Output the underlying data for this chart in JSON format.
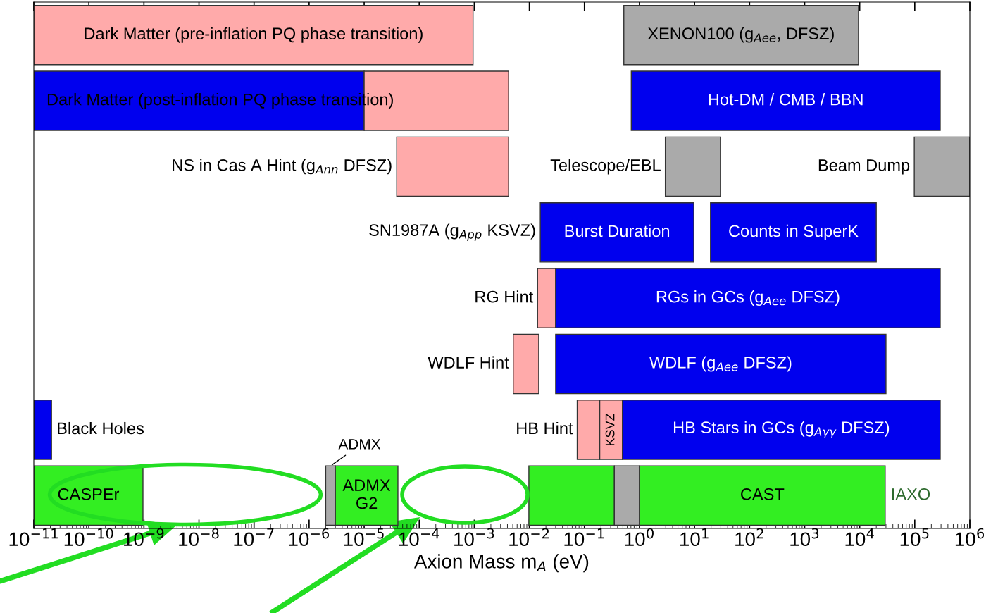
{
  "chart_data": {
    "type": "bar",
    "orientation": "horizontal",
    "log": "x",
    "tick_labels": "x",
    "xlabel": "Axion Mass m$_{A}$ (eV)",
    "categories": [
      null,
      null,
      null,
      null,
      null,
      null,
      null,
      null
    ],
    "xlim": [
      1e-11,
      1000000.0
    ],
    "xticks": [
      {
        "value": 1e-11,
        "label": "10$^{−11}$"
      },
      {
        "value": 1e-10,
        "label": "10$^{−10}$"
      },
      {
        "value": 1e-09,
        "label": "10$^{−9}$"
      },
      {
        "value": 1e-08,
        "label": "10$^{−8}$"
      },
      {
        "value": 1e-07,
        "label": "10$^{−7}$"
      },
      {
        "value": 1e-06,
        "label": "10$^{−6}$"
      },
      {
        "value": 1e-05,
        "label": "10$^{−5}$"
      },
      {
        "value": 0.0001,
        "label": "10$^{−4}$"
      },
      {
        "value": 0.001,
        "label": "10$^{−3}$"
      },
      {
        "value": 0.01,
        "label": "10$^{−2}$"
      },
      {
        "value": 0.1,
        "label": "10$^{−1}$"
      },
      {
        "value": 1,
        "label": "10$^{0}$"
      },
      {
        "value": 10,
        "label": "10$^{1}$"
      },
      {
        "value": 100,
        "label": "10$^{2}$"
      },
      {
        "value": 1000,
        "label": "10$^{3}$"
      },
      {
        "value": 10000.0,
        "label": "10$^{4}$"
      },
      {
        "value": 100000.0,
        "label": "10$^{5}$"
      },
      {
        "value": 1000000.0,
        "label": "10$^{6}$"
      }
    ],
    "series": [
      {
        "values": [
          0.00095,
          1e-05,
          0.004161,
          9.684,
          0.0159,
          0.0097,
          1.1e-11,
          9.5e-10
        ],
        "base": [
          1e-11,
          1e-11,
          3.9e-05,
          0.0158,
          0.0141,
          0.0051,
          1e-11,
          1e-11
        ],
        "colors": [
          "#ffaaaa",
          "#0000ee",
          "#ffaaaa",
          "#0000ee",
          "#ffaaaa",
          "#ffaaaa",
          "#0000ee",
          "#33ee22"
        ],
        "value_labels": [
          "Dark Matter (pre-inflation PQ phase transition)",
          "Dark Matter (post-inflation PQ phase transition)",
          "NS in Cas A Hint (g$_{Ann}$ DFSZ)",
          "Burst Duration",
          "RG Hint",
          "WDLF Hint",
          "Black Holes",
          "CASPEr"
        ]
      },
      {
        "values": [
          9500,
          0.00419,
          26.55,
          19980.5,
          290000.0,
          30000.0,
          0.116,
          1e-06
        ],
        "base": [
          0.52,
          1e-05,
          2.95,
          19.5,
          0.03,
          0.03,
          0.074,
          2e-06
        ],
        "colors": [
          "#aaaaaa",
          "#ffaaaa",
          "#aaaaaa",
          "#0000ee",
          "#0000ee",
          "#0000ee",
          "#ffaaaa",
          "#aaaaaa"
        ],
        "value_labels": [
          "XENON100 (g$_{Aee}$, DFSZ)",
          null,
          "Telescope/EBL",
          "Counts in SuperK",
          "RGs in GCs (g$_{Aee}$ DFSZ)",
          "WDLF (g$_{Aee}$ DFSZ)",
          "HB Hint",
          "ADMX"
        ]
      },
      {
        "values": [
          null,
          290000.0,
          902000.0,
          null,
          null,
          null,
          0.3,
          3.8e-05
        ],
        "base": [
          null,
          0.71,
          98000.0,
          null,
          null,
          null,
          0.19,
          3e-06
        ],
        "colors": [
          null,
          "#0000ee",
          "#aaaaaa",
          null,
          null,
          null,
          "#ffaaaa",
          "#33ee22"
        ],
        "value_labels": [
          null,
          "Hot-DM / CMB / BBN",
          "Beam Dump",
          null,
          null,
          null,
          "KSVZ",
          "ADMX\nG2"
        ]
      },
      {
        "values": [
          null,
          null,
          null,
          null,
          null,
          null,
          290000.0,
          0.3402
        ],
        "base": [
          null,
          null,
          null,
          null,
          null,
          null,
          0.49,
          0.0098
        ],
        "colors": [
          null,
          null,
          null,
          null,
          null,
          null,
          "#0000ee",
          "#33ee22"
        ],
        "value_labels": [
          null,
          null,
          null,
          null,
          null,
          null,
          "HB Stars in GCs (g$_{Aγγ}$ DFSZ)",
          null
        ]
      },
      {
        "values": [
          null,
          null,
          null,
          null,
          null,
          null,
          null,
          0.65
        ],
        "base": [
          null,
          null,
          null,
          null,
          null,
          null,
          null,
          0.35
        ],
        "colors": [
          null,
          null,
          null,
          null,
          null,
          null,
          null,
          "#aaaaaa"
        ]
      },
      {
        "values": [
          null,
          null,
          null,
          null,
          null,
          null,
          null,
          29000.0
        ],
        "base": [
          null,
          null,
          null,
          null,
          null,
          null,
          null,
          1.0
        ],
        "colors": [
          null,
          null,
          null,
          null,
          null,
          null,
          null,
          "#33ee22"
        ],
        "value_labels": [
          null,
          null,
          null,
          null,
          null,
          null,
          null,
          "CAST"
        ]
      }
    ],
    "annotations": [
      {
        "text": "SN1987A (g$_{App}$ KSVZ)",
        "x": 0.0158
      },
      {
        "text": "IAXO",
        "x": 29000.0
      }
    ]
  }
}
